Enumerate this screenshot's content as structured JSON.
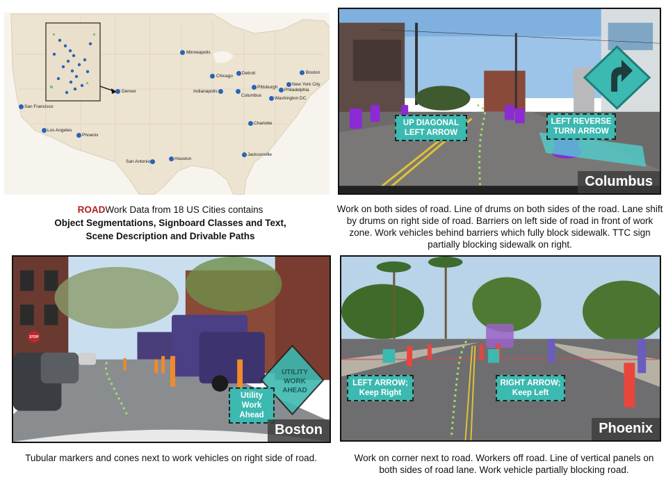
{
  "colors": {
    "road_red": "#b02020",
    "map_land": "#efe6d6",
    "dot_blue": "#2a63b5",
    "sign_teal": "#3cb9b0",
    "drum_purple": "#8c2bd4"
  },
  "map": {
    "cities": [
      {
        "name": "Minneapolis"
      },
      {
        "name": "Chicago"
      },
      {
        "name": "Detroit"
      },
      {
        "name": "Boston"
      },
      {
        "name": "New York City"
      },
      {
        "name": "Pittsburgh"
      },
      {
        "name": "Philadelphia"
      },
      {
        "name": "Indianapolis"
      },
      {
        "name": "Columbus"
      },
      {
        "name": "Washington DC"
      },
      {
        "name": "Denver"
      },
      {
        "name": "San Francisco"
      },
      {
        "name": "Los Angeles"
      },
      {
        "name": "Phoenix"
      },
      {
        "name": "Charlotte"
      },
      {
        "name": "San Antonio"
      },
      {
        "name": "Houston"
      },
      {
        "name": "Jacksonville"
      }
    ]
  },
  "title": {
    "road": "ROAD",
    "line1_rest": "Work Data from 18 US Cities contains",
    "line2": "Object Segmentations, Signboard Classes and Text,",
    "line3": "Scene Description and Drivable Paths"
  },
  "columbus": {
    "city": "Columbus",
    "callout_left": "UP DIAGONAL LEFT ARROW",
    "callout_right": "LEFT REVERSE TURN ARROW",
    "caption": "Work on both sides of road. Line of drums on both sides of the road. Lane shift by drums on right side of road. Barriers on left side of road in front of work zone. Work vehicles behind barriers which fully block sidewalk. TTC sign partially blocking sidewalk on right."
  },
  "boston": {
    "city": "Boston",
    "callout": "Utility Work Ahead",
    "sign_text": "UTILITY WORK AHEAD",
    "stop_text": "STOP",
    "caption": "Tubular markers and cones next to work vehicles on right side of road."
  },
  "phoenix": {
    "city": "Phoenix",
    "callout_left": "LEFT ARROW; Keep Right",
    "callout_right": "RIGHT ARROW; Keep Left",
    "caption": "Work on corner next to road. Workers off road. Line of vertical panels on both sides of road lane. Work vehicle partially blocking road."
  }
}
